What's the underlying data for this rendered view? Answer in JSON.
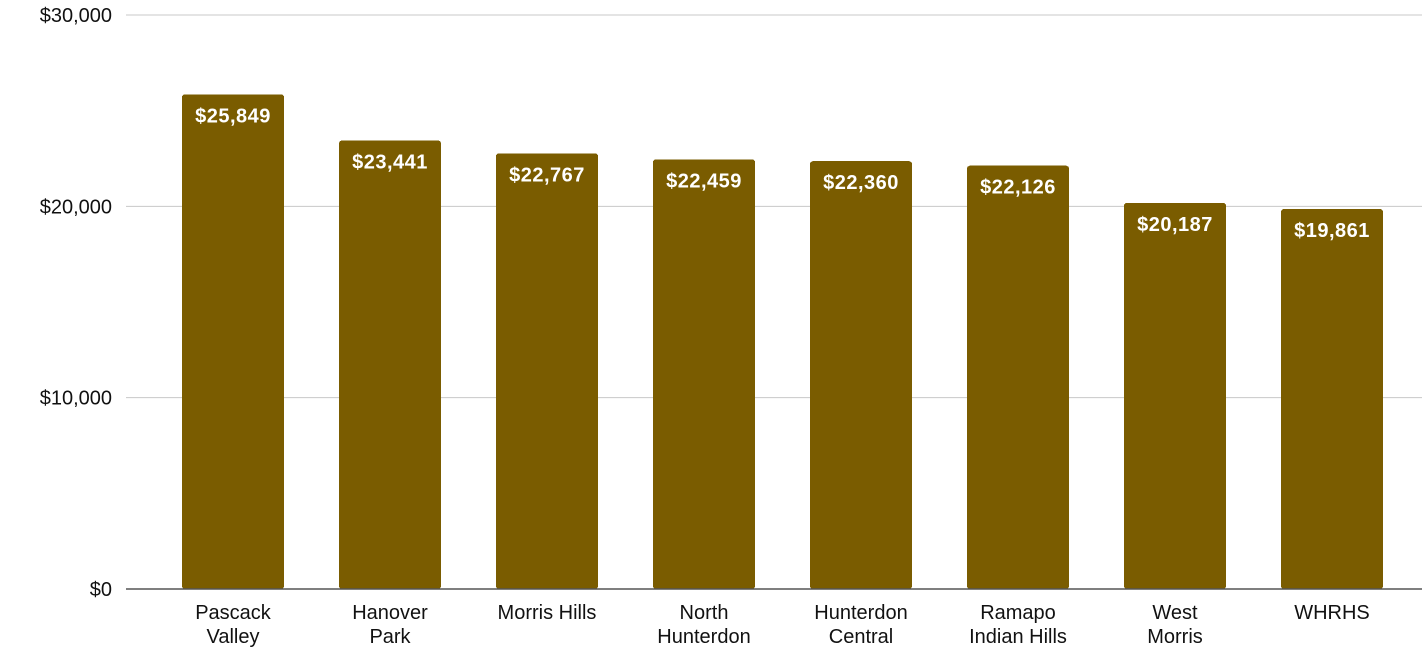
{
  "chart_data": {
    "type": "bar",
    "categories": [
      [
        "Pascack",
        "Valley"
      ],
      [
        "Hanover",
        "Park"
      ],
      [
        "Morris Hills"
      ],
      [
        "North",
        "Hunterdon"
      ],
      [
        "Hunterdon",
        "Central"
      ],
      [
        "Ramapo",
        "Indian Hills"
      ],
      [
        "West",
        "Morris"
      ],
      [
        "WHRHS"
      ]
    ],
    "values": [
      25849,
      23441,
      22767,
      22459,
      22360,
      22126,
      20187,
      19861
    ],
    "data_labels": [
      "$25,849",
      "$23,441",
      "$22,767",
      "$22,459",
      "$22,360",
      "$22,126",
      "$20,187",
      "$19,861"
    ],
    "y_ticks": [
      0,
      10000,
      20000,
      30000
    ],
    "y_tick_labels": [
      "$0",
      "$10,000",
      "$20,000",
      "$30,000"
    ],
    "ylim": [
      0,
      30000
    ],
    "grid": true,
    "legend": "none",
    "colors": {
      "bar": "#7a5c00",
      "label": "#ffffff"
    }
  }
}
